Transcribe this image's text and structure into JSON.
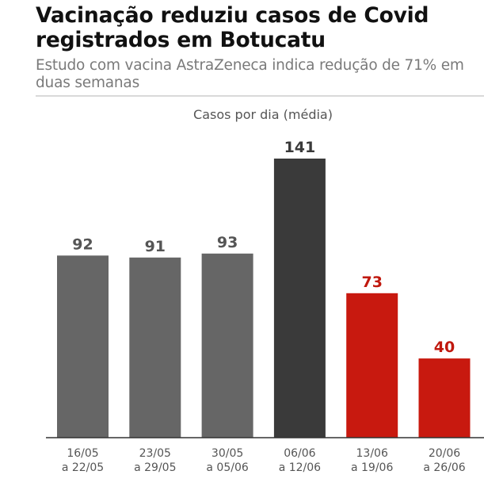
{
  "header": {
    "title": "Vacinação reduziu casos de Covid registrados em Botucatu",
    "subtitle": "Estudo com vacina AstraZeneca indica redução de 71% em duas semanas"
  },
  "chart_data": {
    "type": "bar",
    "title": "Casos por dia (média)",
    "categories": [
      [
        "16/05",
        "a 22/05"
      ],
      [
        "23/05",
        "a 29/05"
      ],
      [
        "30/05",
        "a 05/06"
      ],
      [
        "06/06",
        "a 12/06"
      ],
      [
        "13/06",
        "a 19/06"
      ],
      [
        "20/06",
        "a 26/06"
      ]
    ],
    "values": [
      92,
      91,
      93,
      141,
      73,
      40
    ],
    "colors": [
      "#666666",
      "#666666",
      "#666666",
      "#3a3a3a",
      "#c8190f",
      "#c8190f"
    ],
    "label_colors": [
      "#555555",
      "#555555",
      "#555555",
      "#3a3a3a",
      "#c0180e",
      "#c0180e"
    ],
    "ylim": [
      0,
      141
    ],
    "grid": false,
    "data_labels": true
  }
}
